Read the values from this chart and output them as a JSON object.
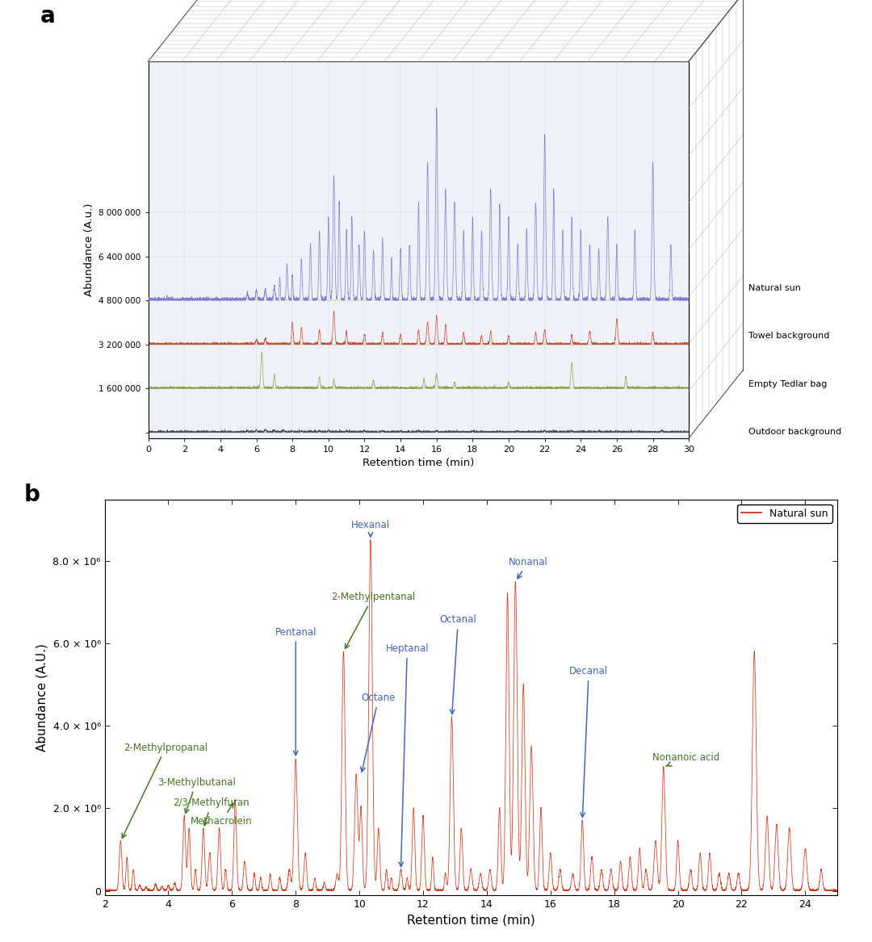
{
  "panel_a_label": "a",
  "panel_b_label": "b",
  "panel_a_ylabel": "Abundance (A.u.)",
  "panel_a_xlabel": "Retention time (min)",
  "panel_b_ylabel": "Abundance (A.U.)",
  "panel_b_xlabel": "Retention time (min)",
  "panel_a_ytick_vals": [
    0,
    1600000,
    3200000,
    4800000,
    6400000,
    8000000
  ],
  "panel_a_ytick_labels": [
    "",
    "1 600 000",
    "3 200 000",
    "4 800 000",
    "6 400 000",
    "8 000 000"
  ],
  "panel_a_xticks": [
    0,
    2,
    4,
    6,
    8,
    10,
    12,
    14,
    16,
    18,
    20,
    22,
    24,
    26,
    28,
    30
  ],
  "panel_b_ytick_labels": [
    "0",
    "2.0 × 10⁶",
    "4.0 × 10⁶",
    "6.0 × 10⁶",
    "8.0 × 10⁶"
  ],
  "panel_b_yticks": [
    0,
    2000000,
    4000000,
    6000000,
    8000000
  ],
  "panel_b_xticks": [
    2,
    4,
    6,
    8,
    10,
    12,
    14,
    16,
    18,
    20,
    22,
    24
  ],
  "series_labels": [
    "Natural sun",
    "Towel background",
    "Empty Tedlar bag",
    "Outdoor background"
  ],
  "series_colors": [
    "#7777cc",
    "#cc4422",
    "#88aa44",
    "#444444"
  ],
  "background_color": "#ffffff",
  "grid_color": "#cccccc",
  "box3d_color": "#aaaaaa"
}
